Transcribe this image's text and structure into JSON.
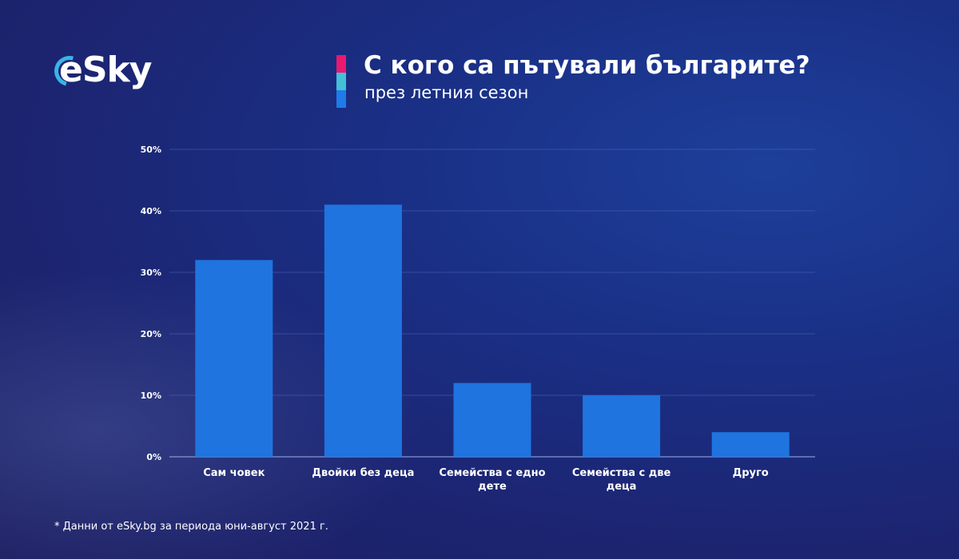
{
  "brand": {
    "logo_text": "eSky"
  },
  "colors": {
    "bar": "#1f74e0",
    "accent_pink": "#e8196f",
    "accent_cyan": "#43bfd9",
    "accent_blue": "#1f7be8",
    "grid": "#5068b8"
  },
  "chart_data": {
    "type": "bar",
    "title": "С кого са пътували българите?",
    "subtitle": "през летния сезон",
    "categories": [
      "Сам човек",
      "Двойки без деца",
      "Семейства с едно дете",
      "Семейства с две деца",
      "Друго"
    ],
    "values": [
      32,
      41,
      12,
      10,
      4
    ],
    "ylim": [
      0,
      50
    ],
    "yticks": [
      0,
      10,
      20,
      30,
      40,
      50
    ],
    "ytick_labels": [
      "0%",
      "10%",
      "20%",
      "30%",
      "40%",
      "50%"
    ],
    "grid": true,
    "legend": "none"
  },
  "footnote": "* Данни от eSky.bg за периода юни-август 2021 г."
}
